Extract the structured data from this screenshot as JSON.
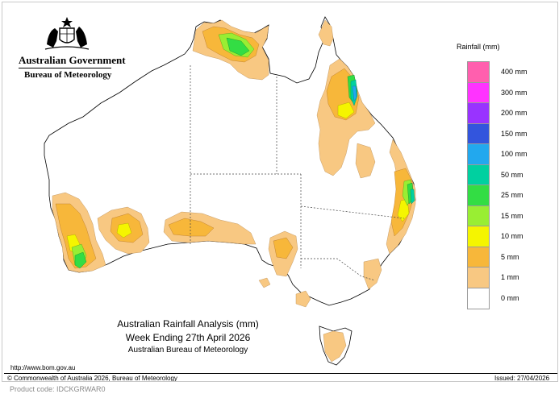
{
  "header": {
    "government": "Australian Government",
    "bureau": "Bureau of Meteorology"
  },
  "legend": {
    "title": "Rainfall (mm)",
    "bins": [
      {
        "label": "400 mm",
        "color": "#ff5fae"
      },
      {
        "label": "300 mm",
        "color": "#ff33ff"
      },
      {
        "label": "200 mm",
        "color": "#9933ff"
      },
      {
        "label": "150 mm",
        "color": "#3355dd"
      },
      {
        "label": "100 mm",
        "color": "#22a8ee"
      },
      {
        "label": "50 mm",
        "color": "#00d0a0"
      },
      {
        "label": "25 mm",
        "color": "#33dd44"
      },
      {
        "label": "15 mm",
        "color": "#99ee33"
      },
      {
        "label": "10 mm",
        "color": "#f5f500"
      },
      {
        "label": "5 mm",
        "color": "#f7b73a"
      },
      {
        "label": "1 mm",
        "color": "#f8c882"
      },
      {
        "label": "0 mm",
        "color": "#ffffff"
      }
    ]
  },
  "caption": {
    "line1": "Australian Rainfall Analysis (mm)",
    "line2": "Week Ending 27th April 2026",
    "line3": "Australian Bureau of Meteorology"
  },
  "footer": {
    "url": "http://www.bom.gov.au",
    "copyright": "© Commonwealth of Australia 2026, Bureau of Meteorology",
    "issued": "Issued: 27/04/2026",
    "product_code": "Product code: IDCKGRWAR0"
  }
}
